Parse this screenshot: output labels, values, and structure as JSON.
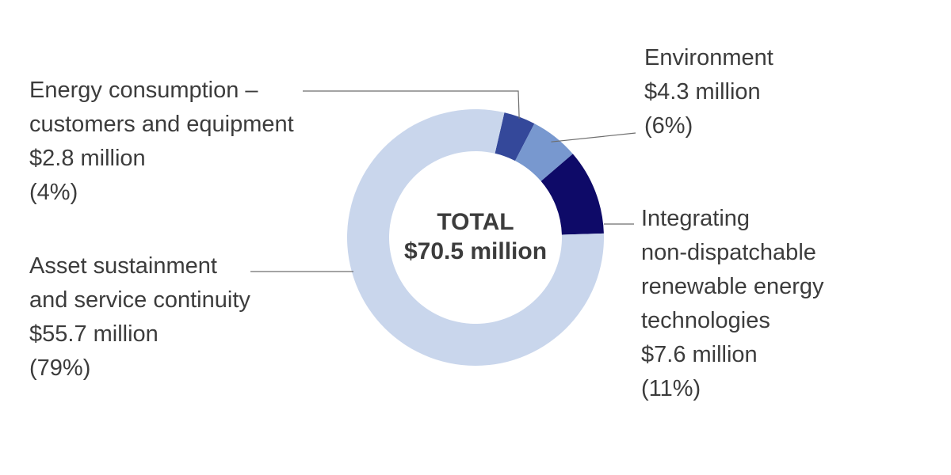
{
  "chart_data": {
    "type": "pie",
    "title": "",
    "center_label": [
      "TOTAL",
      "$70.5 million"
    ],
    "slices": [
      {
        "name": "Energy consumption – customers and equipment",
        "value": 2.8,
        "percent": 4,
        "color": "#34489a",
        "label_lines": [
          "Energy consumption –",
          "customers and equipment",
          "$2.8 million",
          "(4%)"
        ]
      },
      {
        "name": "Environment",
        "value": 4.3,
        "percent": 6,
        "color": "#7898cf",
        "label_lines": [
          "Environment",
          "$4.3 million",
          "(6%)"
        ]
      },
      {
        "name": "Integrating non-dispatchable renewable energy technologies",
        "value": 7.6,
        "percent": 11,
        "color": "#0e0a68",
        "label_lines": [
          "Integrating",
          "non-dispatchable",
          "renewable energy",
          "technologies",
          "$7.6 million",
          "(11%)"
        ]
      },
      {
        "name": "Asset sustainment and service continuity",
        "value": 55.7,
        "percent": 79,
        "color": "#c9d6ec",
        "label_lines": [
          "Asset sustainment",
          "and service continuity",
          "$55.7 million",
          "(79%)"
        ]
      }
    ]
  }
}
